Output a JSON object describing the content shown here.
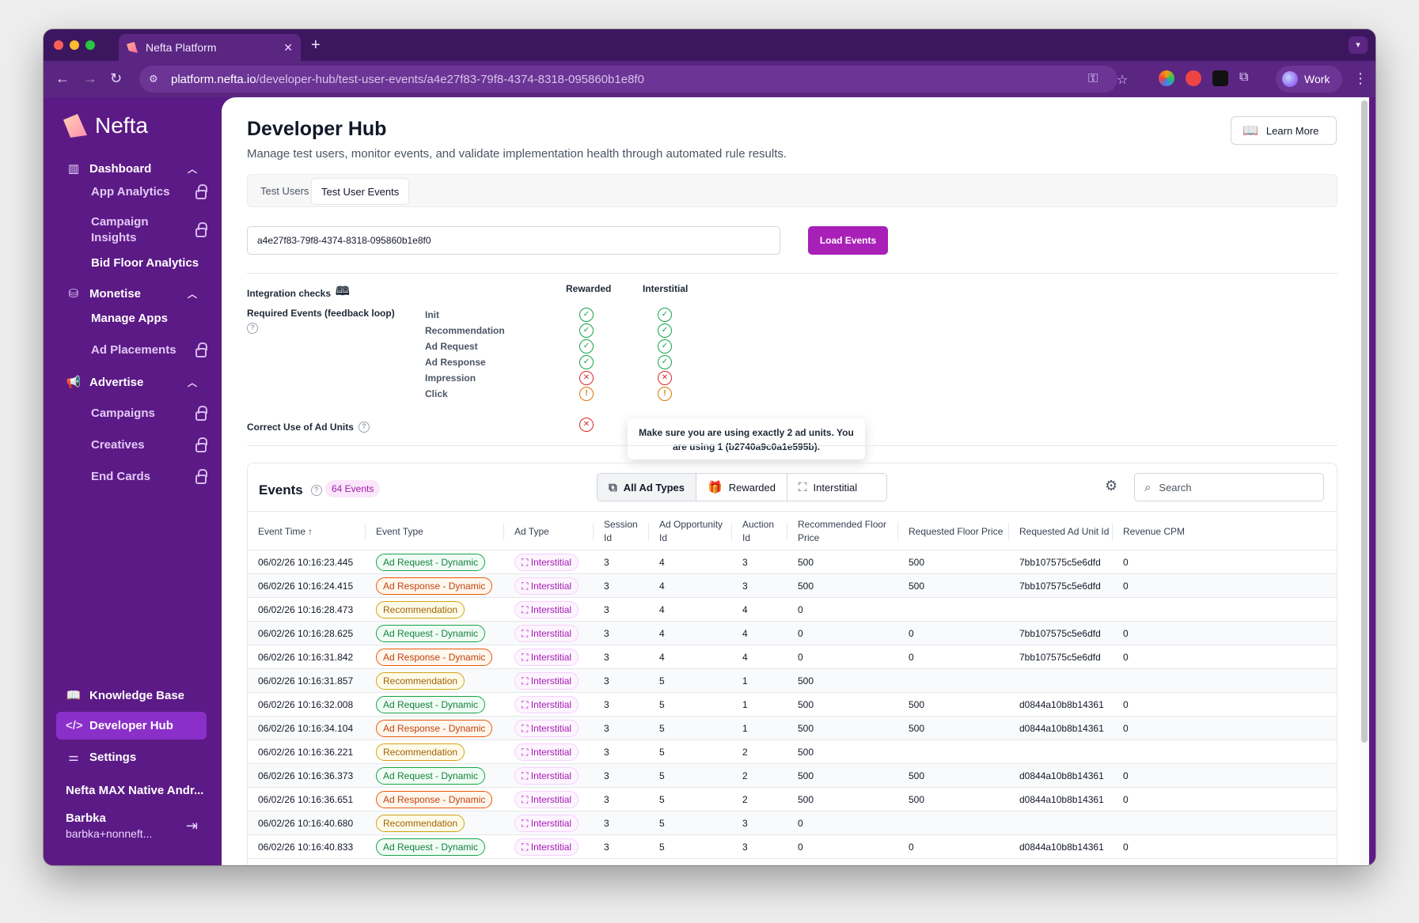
{
  "browser": {
    "tab_title": "Nefta Platform",
    "url_host": "platform.nefta.io",
    "url_path": "/developer-hub/test-user-events/a4e27f83-79f8-4374-8318-095860b1e8f0",
    "profile_label": "Work"
  },
  "sidebar": {
    "logo_text": "Nefta",
    "sections": [
      {
        "label": "Dashboard",
        "icon": "bar-chart-icon"
      },
      {
        "label": "Monetise",
        "icon": "coins-icon"
      },
      {
        "label": "Advertise",
        "icon": "megaphone-icon"
      }
    ],
    "dashboard_items": [
      {
        "label": "App Analytics",
        "locked": true
      },
      {
        "label": "Campaign Insights",
        "locked": true
      },
      {
        "label": "Bid Floor Analytics",
        "locked": false
      }
    ],
    "monetise_items": [
      {
        "label": "Manage Apps",
        "locked": false
      },
      {
        "label": "Ad Placements",
        "locked": true
      }
    ],
    "advertise_items": [
      {
        "label": "Campaigns",
        "locked": true
      },
      {
        "label": "Creatives",
        "locked": true
      },
      {
        "label": "End Cards",
        "locked": true
      }
    ],
    "bottom_items": [
      {
        "label": "Knowledge Base",
        "icon": "book-icon"
      },
      {
        "label": "Developer Hub",
        "icon": "code-icon"
      },
      {
        "label": "Settings",
        "icon": "sliders-icon"
      }
    ],
    "app_name": "Nefta MAX Native Andr...",
    "user_name": "Barbka",
    "user_email": "barbka+nonneft..."
  },
  "header": {
    "title": "Developer Hub",
    "subtitle": "Manage test users, monitor events, and validate implementation health through automated rule results.",
    "learn_more": "Learn More"
  },
  "tabs": [
    "Test Users",
    "Test User Events"
  ],
  "user_id_input": "a4e27f83-79f8-4374-8318-095860b1e8f0",
  "load_button": "Load Events",
  "checks": {
    "title": "Integration checks",
    "columns": [
      "Rewarded",
      "Interstitial"
    ],
    "required_label": "Required Events (feedback loop)",
    "events": [
      {
        "name": "Init",
        "rewarded": "ok",
        "interstitial": "ok"
      },
      {
        "name": "Recommendation",
        "rewarded": "ok",
        "interstitial": "ok"
      },
      {
        "name": "Ad Request",
        "rewarded": "ok",
        "interstitial": "ok"
      },
      {
        "name": "Ad Response",
        "rewarded": "ok",
        "interstitial": "ok"
      },
      {
        "name": "Impression",
        "rewarded": "err",
        "interstitial": "err"
      },
      {
        "name": "Click",
        "rewarded": "warn",
        "interstitial": "warn"
      }
    ],
    "ad_units_label": "Correct Use of Ad Units",
    "ad_units_status": "err",
    "tooltip": "Make sure you are using exactly 2 ad units. You are using 1 (b2740a9c0a1e595b)."
  },
  "events": {
    "title": "Events",
    "count": "64 Events",
    "filters": [
      {
        "label": "All Ad Types",
        "icon": "layers-icon"
      },
      {
        "label": "Rewarded",
        "icon": "gift-icon"
      },
      {
        "label": "Interstitial",
        "icon": "expand-icon"
      }
    ],
    "search_placeholder": "Search",
    "columns": [
      "Event Time",
      "Event Type",
      "Ad Type",
      "Session Id",
      "Ad Opportunity Id",
      "Auction Id",
      "Recommended Floor Price",
      "Requested Floor Price",
      "Requested Ad Unit Id",
      "Revenue CPM"
    ],
    "sort_indicator": "↑",
    "rows": [
      [
        "06/02/26 10:16:23.445",
        "Ad Request - Dynamic",
        "Interstitial",
        "3",
        "4",
        "3",
        "500",
        "500",
        "7bb107575c5e6dfd",
        "0"
      ],
      [
        "06/02/26 10:16:24.415",
        "Ad Response - Dynamic",
        "Interstitial",
        "3",
        "4",
        "3",
        "500",
        "500",
        "7bb107575c5e6dfd",
        "0"
      ],
      [
        "06/02/26 10:16:28.473",
        "Recommendation",
        "Interstitial",
        "3",
        "4",
        "4",
        "0",
        "",
        "",
        ""
      ],
      [
        "06/02/26 10:16:28.625",
        "Ad Request - Dynamic",
        "Interstitial",
        "3",
        "4",
        "4",
        "0",
        "0",
        "7bb107575c5e6dfd",
        "0"
      ],
      [
        "06/02/26 10:16:31.842",
        "Ad Response - Dynamic",
        "Interstitial",
        "3",
        "4",
        "4",
        "0",
        "0",
        "7bb107575c5e6dfd",
        "0"
      ],
      [
        "06/02/26 10:16:31.857",
        "Recommendation",
        "Interstitial",
        "3",
        "5",
        "1",
        "500",
        "",
        "",
        ""
      ],
      [
        "06/02/26 10:16:32.008",
        "Ad Request - Dynamic",
        "Interstitial",
        "3",
        "5",
        "1",
        "500",
        "500",
        "d0844a10b8b14361",
        "0"
      ],
      [
        "06/02/26 10:16:34.104",
        "Ad Response - Dynamic",
        "Interstitial",
        "3",
        "5",
        "1",
        "500",
        "500",
        "d0844a10b8b14361",
        "0"
      ],
      [
        "06/02/26 10:16:36.221",
        "Recommendation",
        "Interstitial",
        "3",
        "5",
        "2",
        "500",
        "",
        "",
        ""
      ],
      [
        "06/02/26 10:16:36.373",
        "Ad Request - Dynamic",
        "Interstitial",
        "3",
        "5",
        "2",
        "500",
        "500",
        "d0844a10b8b14361",
        "0"
      ],
      [
        "06/02/26 10:16:36.651",
        "Ad Response - Dynamic",
        "Interstitial",
        "3",
        "5",
        "2",
        "500",
        "500",
        "d0844a10b8b14361",
        "0"
      ],
      [
        "06/02/26 10:16:40.680",
        "Recommendation",
        "Interstitial",
        "3",
        "5",
        "3",
        "0",
        "",
        "",
        ""
      ],
      [
        "06/02/26 10:16:40.833",
        "Ad Request - Dynamic",
        "Interstitial",
        "3",
        "5",
        "3",
        "0",
        "0",
        "d0844a10b8b14361",
        "0"
      ]
    ]
  },
  "colors": {
    "sidebar_bg": "#5c1a86",
    "accent": "#a820b8",
    "active_nav": "#8b2fc9"
  }
}
